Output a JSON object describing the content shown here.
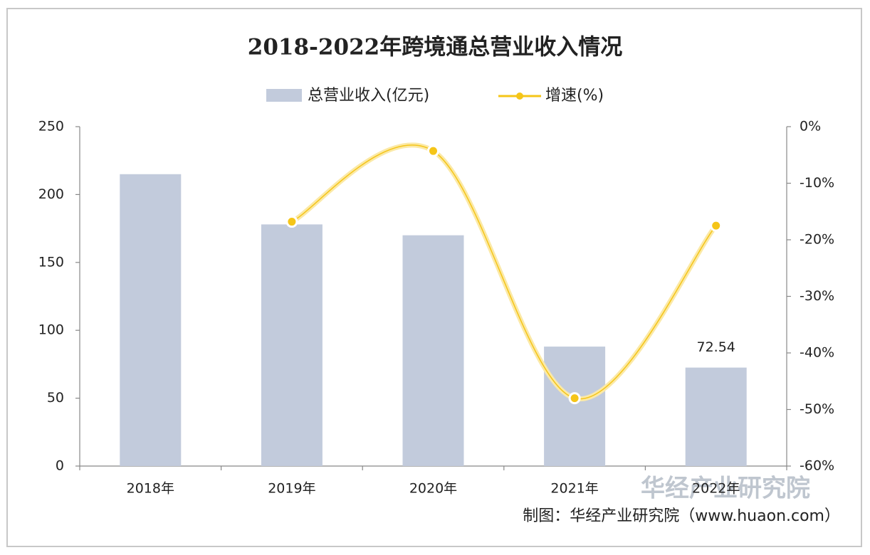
{
  "chart_data": {
    "type": "bar",
    "title": "2018-2022年跨境通总营业收入情况",
    "categories": [
      "2018年",
      "2019年",
      "2020年",
      "2021年",
      "2022年"
    ],
    "series": [
      {
        "name": "总营业收入(亿元)",
        "color": "#c2cbdc",
        "type": "bar",
        "values": [
          215,
          178,
          170,
          88,
          72.54
        ]
      },
      {
        "name": "增速(%)",
        "color": "#f5c518",
        "type": "line",
        "axis": "y2",
        "values": [
          null,
          -16.8,
          -4.3,
          -48,
          -17.5
        ]
      }
    ],
    "ylim": [
      0,
      250
    ],
    "yticks": [
      0,
      50,
      100,
      150,
      200,
      250
    ],
    "y2lim": [
      -60,
      0
    ],
    "y2ticks": [
      {
        "value": 0,
        "label": "0%"
      },
      {
        "value": -10,
        "label": "-10%"
      },
      {
        "value": -20,
        "label": "-20%"
      },
      {
        "value": -30,
        "label": "-30%"
      },
      {
        "value": -40,
        "label": "-40%"
      },
      {
        "value": -50,
        "label": "-50%"
      },
      {
        "value": -60,
        "label": "-60%"
      }
    ],
    "labeled_bar": 4,
    "source": "制图：华经产业研究院（www.huaon.com）",
    "watermark": "华经产业研究院"
  }
}
